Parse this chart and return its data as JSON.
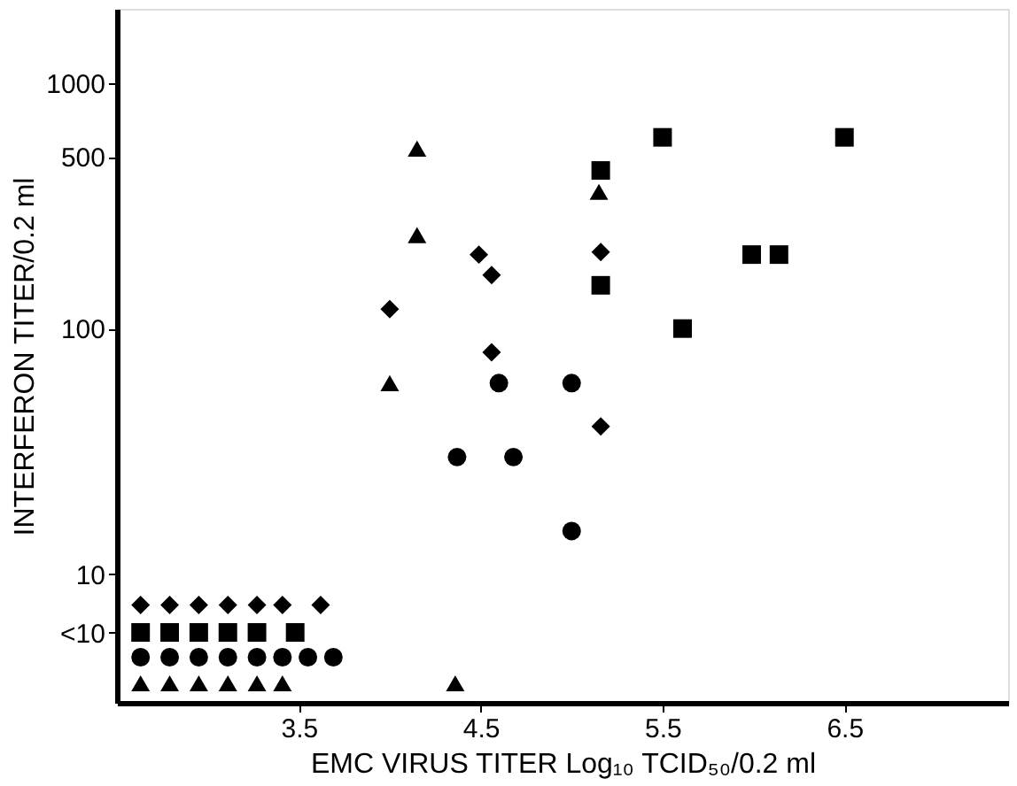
{
  "chart_data": {
    "type": "scatter",
    "xlabel": "EMC VIRUS TITER Log₁₀ TCID₅₀/0.2 ml",
    "ylabel": "INTERFERON TITER/0.2 ml",
    "xlim": [
      2.5,
      7.4
    ],
    "xticks": [
      3.5,
      4.5,
      5.5,
      6.5
    ],
    "ylim": [
      3,
      2000
    ],
    "log": true,
    "yticks": [
      {
        "value": 5.8,
        "label": "<10"
      },
      10,
      100,
      500,
      1000
    ],
    "grid": false,
    "series": [
      {
        "color": "#000000",
        "marker": "diamond",
        "x": [
          2.63,
          2.79,
          2.95,
          3.11,
          3.27,
          3.41,
          3.62,
          4.0,
          4.49,
          4.56,
          4.56,
          5.16,
          5.16
        ],
        "values": [
          7.5,
          7.5,
          7.5,
          7.5,
          7.5,
          7.5,
          7.5,
          120,
          200,
          165,
          80,
          205,
          40
        ]
      },
      {
        "color": "#000000",
        "marker": "square",
        "x": [
          2.63,
          2.79,
          2.95,
          3.11,
          3.27,
          3.48,
          5.5,
          6.5,
          5.16,
          5.16,
          5.99,
          6.14,
          5.61
        ],
        "values": [
          5.8,
          5.8,
          5.8,
          5.8,
          5.8,
          5.8,
          600,
          600,
          440,
          150,
          200,
          200,
          100
        ]
      },
      {
        "color": "#000000",
        "marker": "circle",
        "x": [
          2.63,
          2.79,
          2.95,
          3.11,
          3.27,
          3.41,
          3.55,
          3.69,
          4.6,
          5.0,
          4.37,
          4.68,
          5.0
        ],
        "values": [
          4.6,
          4.6,
          4.6,
          4.6,
          4.6,
          4.6,
          4.6,
          4.6,
          60,
          60,
          30,
          30,
          15
        ]
      },
      {
        "color": "#000000",
        "marker": "triangle",
        "x": [
          2.63,
          2.79,
          2.95,
          3.11,
          3.27,
          3.41,
          4.36,
          4.15,
          4.15,
          4.0,
          5.15
        ],
        "values": [
          3.6,
          3.6,
          3.6,
          3.6,
          3.6,
          3.6,
          3.6,
          540,
          240,
          60,
          360
        ]
      }
    ]
  }
}
